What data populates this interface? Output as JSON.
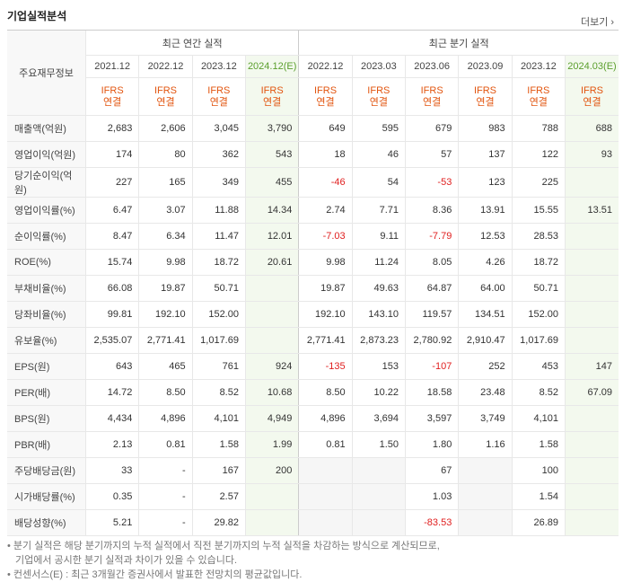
{
  "header": {
    "title": "기업실적분석",
    "more": "더보기"
  },
  "table": {
    "corner": "주요재무정보",
    "groups": [
      "최근 연간 실적",
      "최근 분기 실적"
    ],
    "annual": [
      {
        "label": "2021.12"
      },
      {
        "label": "2022.12"
      },
      {
        "label": "2023.12"
      },
      {
        "label": "2024.12(E)",
        "estimate": true
      }
    ],
    "quarterly": [
      {
        "label": "2022.12"
      },
      {
        "label": "2023.03"
      },
      {
        "label": "2023.06"
      },
      {
        "label": "2023.09"
      },
      {
        "label": "2023.12"
      },
      {
        "label": "2024.03(E)",
        "estimate": true
      }
    ],
    "standards": [
      "IFRS\n연결",
      "IFRS\n연결",
      "IFRS\n연결",
      "IFRS\n연결",
      "IFRS\n연결",
      "IFRS\n연결",
      "IFRS\n연결",
      "IFRS\n연결",
      "IFRS\n연결",
      "IFRS\n연결"
    ],
    "row_groups": [
      [
        {
          "label": "매출액(억원)",
          "values": [
            "2,683",
            "2,606",
            "3,045",
            "3,790",
            "649",
            "595",
            "679",
            "983",
            "788",
            "688"
          ]
        },
        {
          "label": "영업이익(억원)",
          "values": [
            "174",
            "80",
            "362",
            "543",
            "18",
            "46",
            "57",
            "137",
            "122",
            "93"
          ]
        },
        {
          "label": "당기순이익(억원)",
          "values": [
            "227",
            "165",
            "349",
            "455",
            "-46",
            "54",
            "-53",
            "123",
            "225",
            null
          ]
        }
      ],
      [
        {
          "label": "영업이익률(%)",
          "values": [
            "6.47",
            "3.07",
            "11.88",
            "14.34",
            "2.74",
            "7.71",
            "8.36",
            "13.91",
            "15.55",
            "13.51"
          ]
        },
        {
          "label": "순이익률(%)",
          "values": [
            "8.47",
            "6.34",
            "11.47",
            "12.01",
            "-7.03",
            "9.11",
            "-7.79",
            "12.53",
            "28.53",
            null
          ]
        },
        {
          "label": "ROE(%)",
          "values": [
            "15.74",
            "9.98",
            "18.72",
            "20.61",
            "9.98",
            "11.24",
            "8.05",
            "4.26",
            "18.72",
            null
          ]
        },
        {
          "label": "부채비율(%)",
          "values": [
            "66.08",
            "19.87",
            "50.71",
            null,
            "19.87",
            "49.63",
            "64.87",
            "64.00",
            "50.71",
            null
          ]
        },
        {
          "label": "당좌비율(%)",
          "values": [
            "99.81",
            "192.10",
            "152.00",
            null,
            "192.10",
            "143.10",
            "119.57",
            "134.51",
            "152.00",
            null
          ]
        },
        {
          "label": "유보율(%)",
          "values": [
            "2,535.07",
            "2,771.41",
            "1,017.69",
            null,
            "2,771.41",
            "2,873.23",
            "2,780.92",
            "2,910.47",
            "1,017.69",
            null
          ]
        }
      ],
      [
        {
          "label": "EPS(원)",
          "values": [
            "643",
            "465",
            "761",
            "924",
            "-135",
            "153",
            "-107",
            "252",
            "453",
            "147"
          ]
        },
        {
          "label": "PER(배)",
          "values": [
            "14.72",
            "8.50",
            "8.52",
            "10.68",
            "8.50",
            "10.22",
            "18.58",
            "23.48",
            "8.52",
            "67.09"
          ]
        },
        {
          "label": "BPS(원)",
          "values": [
            "4,434",
            "4,896",
            "4,101",
            "4,949",
            "4,896",
            "3,694",
            "3,597",
            "3,749",
            "4,101",
            null
          ]
        },
        {
          "label": "PBR(배)",
          "values": [
            "2.13",
            "0.81",
            "1.58",
            "1.99",
            "0.81",
            "1.50",
            "1.80",
            "1.16",
            "1.58",
            null
          ]
        }
      ],
      [
        {
          "label": "주당배당금(원)",
          "values": [
            "33",
            "-",
            "167",
            "200",
            null,
            null,
            "67",
            null,
            "100",
            null
          ]
        },
        {
          "label": "시가배당률(%)",
          "values": [
            "0.35",
            "-",
            "2.57",
            null,
            null,
            null,
            "1.03",
            null,
            "1.54",
            null
          ]
        },
        {
          "label": "배당성향(%)",
          "values": [
            "5.21",
            "-",
            "29.82",
            null,
            null,
            null,
            "-83.53",
            null,
            "26.89",
            null
          ]
        }
      ]
    ]
  },
  "notes": [
    [
      "분기 실적은 해당 분기까지의 누적 실적에서 직전 분기까지의 누적 실적을 차감하는 방식으로 계산되므로,",
      "기업에서 공시한 분기 실적과 차이가 있을 수 있습니다."
    ],
    [
      "컨센서스(E) : 최근 3개월간 증권사에서 발표한 전망치의 평균값입니다."
    ]
  ]
}
